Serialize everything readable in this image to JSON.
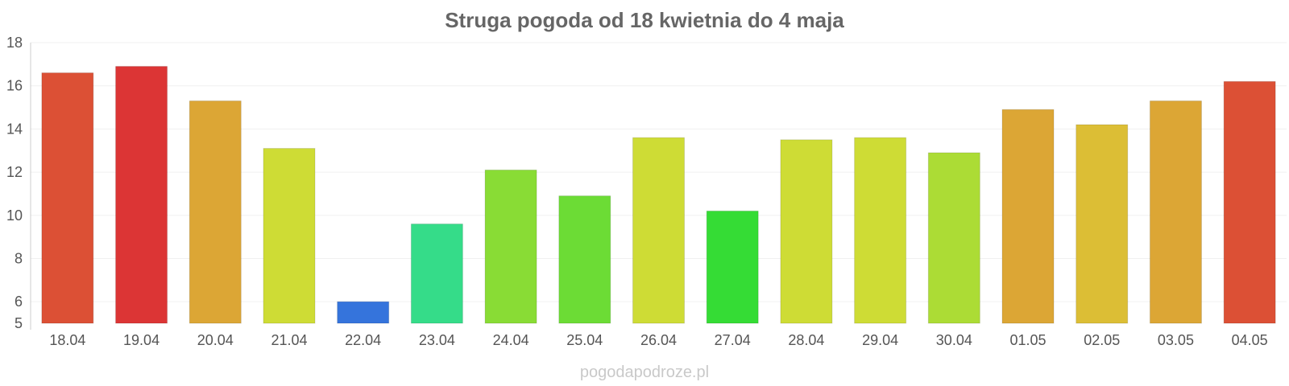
{
  "chart_data": {
    "type": "bar",
    "title": "Struga pogoda od 18 kwietnia do 4 maja",
    "xlabel": "",
    "ylabel": "",
    "ylim": [
      5,
      18
    ],
    "yticks": [
      5,
      6,
      8,
      10,
      12,
      14,
      16,
      18
    ],
    "grid": true,
    "categories": [
      "18.04",
      "19.04",
      "20.04",
      "21.04",
      "22.04",
      "23.04",
      "24.04",
      "25.04",
      "26.04",
      "27.04",
      "28.04",
      "29.04",
      "30.04",
      "01.05",
      "02.05",
      "03.05",
      "04.05"
    ],
    "values": [
      16.6,
      16.9,
      15.3,
      13.1,
      6.0,
      9.6,
      12.1,
      10.9,
      13.6,
      10.2,
      13.5,
      13.6,
      12.9,
      14.9,
      14.2,
      15.3,
      16.2
    ],
    "colors": [
      "#dc5035",
      "#dc3535",
      "#dca635",
      "#cedc35",
      "#3574dc",
      "#35dc89",
      "#89dc35",
      "#6cdc35",
      "#cedc35",
      "#35dc35",
      "#cedc35",
      "#cedc35",
      "#acdc35",
      "#dca635",
      "#dcbe35",
      "#dca635",
      "#dc5035"
    ]
  },
  "watermark": "pogodapodroze.pl"
}
